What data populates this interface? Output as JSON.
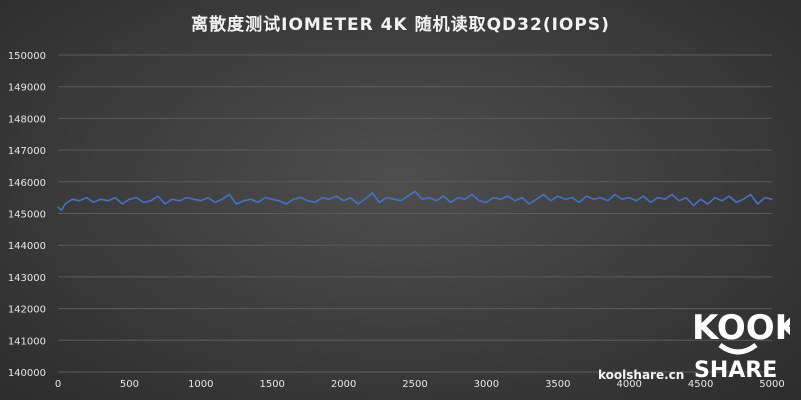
{
  "chart_data": {
    "type": "line",
    "title": "离散度测试IOMETER  4K 随机读取QD32(IOPS)",
    "xlabel": "",
    "ylabel": "",
    "xlim": [
      0,
      5000
    ],
    "ylim": [
      140000,
      150000
    ],
    "x_ticks": [
      "0",
      "500",
      "1000",
      "1500",
      "2000",
      "2500",
      "3000",
      "3500",
      "4000",
      "4500",
      "5000"
    ],
    "y_ticks": [
      "140000",
      "141000",
      "142000",
      "143000",
      "144000",
      "145000",
      "146000",
      "147000",
      "148000",
      "149000",
      "150000"
    ],
    "grid": true,
    "legend": "none",
    "series_color": "#4472c4",
    "series": [
      {
        "x": [
          0,
          25,
          50,
          100,
          150,
          200,
          250,
          300,
          350,
          400,
          450,
          500,
          550,
          600,
          650,
          700,
          750,
          800,
          850,
          900,
          950,
          1000,
          1050,
          1100,
          1150,
          1200,
          1250,
          1300,
          1350,
          1400,
          1450,
          1500,
          1550,
          1600,
          1650,
          1700,
          1750,
          1800,
          1850,
          1900,
          1950,
          2000,
          2050,
          2100,
          2150,
          2200,
          2250,
          2300,
          2350,
          2400,
          2450,
          2500,
          2550,
          2600,
          2650,
          2700,
          2750,
          2800,
          2850,
          2900,
          2950,
          3000,
          3050,
          3100,
          3150,
          3200,
          3250,
          3300,
          3350,
          3400,
          3450,
          3500,
          3550,
          3600,
          3650,
          3700,
          3750,
          3800,
          3850,
          3900,
          3950,
          4000,
          4050,
          4100,
          4150,
          4200,
          4250,
          4300,
          4350,
          4400,
          4450,
          4500,
          4550,
          4600,
          4650,
          4700,
          4750,
          4800,
          4850,
          4900,
          4950,
          5000
        ],
        "values": [
          145200,
          145100,
          145300,
          145450,
          145400,
          145500,
          145350,
          145450,
          145400,
          145500,
          145300,
          145450,
          145500,
          145350,
          145400,
          145550,
          145300,
          145450,
          145400,
          145500,
          145450,
          145400,
          145500,
          145350,
          145450,
          145600,
          145300,
          145400,
          145450,
          145350,
          145500,
          145450,
          145400,
          145300,
          145450,
          145500,
          145400,
          145350,
          145500,
          145450,
          145550,
          145400,
          145500,
          145300,
          145450,
          145650,
          145350,
          145500,
          145450,
          145400,
          145550,
          145700,
          145450,
          145500,
          145400,
          145550,
          145350,
          145500,
          145450,
          145600,
          145400,
          145350,
          145500,
          145450,
          145550,
          145400,
          145500,
          145300,
          145450,
          145600,
          145400,
          145550,
          145450,
          145500,
          145350,
          145550,
          145450,
          145500,
          145400,
          145600,
          145450,
          145500,
          145400,
          145550,
          145350,
          145500,
          145450,
          145600,
          145400,
          145500,
          145250,
          145450,
          145300,
          145500,
          145400,
          145550,
          145350,
          145450,
          145600,
          145300,
          145500,
          145450
        ]
      }
    ]
  },
  "watermark": {
    "site": "koolshare.cn",
    "logo_top": "KOOK",
    "logo_bottom": "SHARE"
  }
}
